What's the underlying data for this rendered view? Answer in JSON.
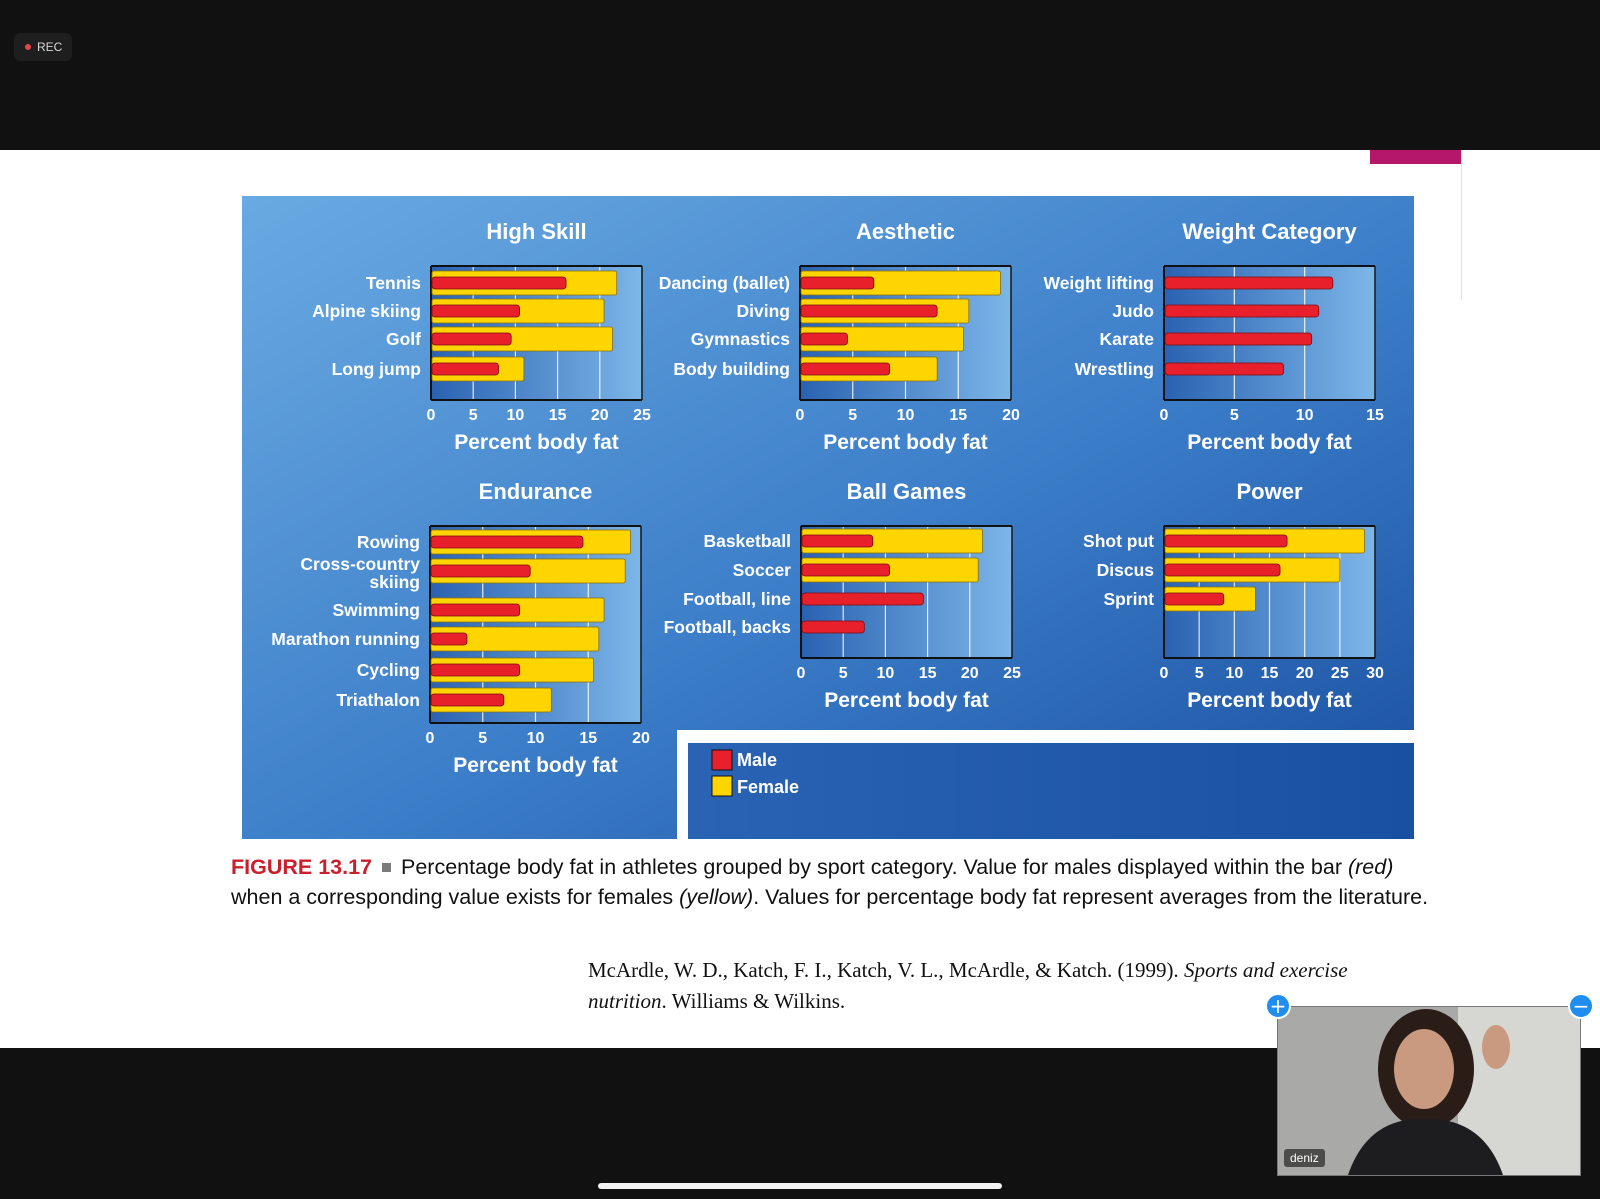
{
  "recording": {
    "label": "REC"
  },
  "figure": {
    "caption_label": "FIGURE 13.17",
    "caption_p1": "Percentage body fat in athletes grouped by sport category. Value for males displayed within the bar ",
    "caption_red": "(red)",
    "caption_p2": " when a corresponding value exists for females ",
    "caption_yellow": "(yellow)",
    "caption_p3": ". Values for percentage body fat represent averages from the literature.",
    "citation_main": "McArdle, W. D., Katch, F. I., Katch, V. L., McArdle, & Katch. (1999). ",
    "citation_title": "Sports and exercise nutrition",
    "citation_end": ". Williams & Wilkins."
  },
  "legend": {
    "male": "Male",
    "female": "Female",
    "male_color": "#e8202c",
    "female_color": "#ffd500"
  },
  "colors": {
    "panel_dark": "#1c55a6",
    "panel_light": "#6aa8e0",
    "grid": "#ffffff",
    "axis": "#111111"
  },
  "video": {
    "name": "deniz"
  },
  "controls": {
    "zoom_in": "+",
    "zoom_out": "−"
  },
  "chart_data": [
    {
      "type": "bar",
      "title": "High Skill",
      "xlabel": "Percent body fat",
      "xlim": [
        0,
        25
      ],
      "ticks": [
        0,
        5,
        10,
        15,
        20,
        25
      ],
      "categories": [
        "Tennis",
        "Alpine skiing",
        "Golf",
        "Long jump"
      ],
      "series": [
        {
          "name": "Male",
          "values": [
            16,
            10.5,
            9.5,
            8
          ]
        },
        {
          "name": "Female",
          "values": [
            22,
            20.5,
            21.5,
            11
          ]
        }
      ]
    },
    {
      "type": "bar",
      "title": "Aesthetic",
      "xlabel": "Percent body fat",
      "xlim": [
        0,
        20
      ],
      "ticks": [
        0,
        5,
        10,
        15,
        20
      ],
      "categories": [
        "Dancing (ballet)",
        "Diving",
        "Gymnastics",
        "Body building"
      ],
      "series": [
        {
          "name": "Male",
          "values": [
            7,
            13,
            4.5,
            8.5
          ]
        },
        {
          "name": "Female",
          "values": [
            19,
            16,
            15.5,
            13
          ]
        }
      ]
    },
    {
      "type": "bar",
      "title": "Weight Category",
      "xlabel": "Percent body fat",
      "xlim": [
        0,
        15
      ],
      "ticks": [
        0,
        5,
        10,
        15
      ],
      "categories": [
        "Weight lifting",
        "Judo",
        "Karate",
        "Wrestling"
      ],
      "series": [
        {
          "name": "Male",
          "values": [
            12,
            11,
            10.5,
            8.5
          ]
        }
      ]
    },
    {
      "type": "bar",
      "title": "Endurance",
      "xlabel": "Percent body fat",
      "xlim": [
        0,
        20
      ],
      "ticks": [
        0,
        5,
        10,
        15,
        20
      ],
      "categories": [
        "Rowing",
        "Cross-country skiing",
        "Swimming",
        "Marathon running",
        "Cycling",
        "Triathalon"
      ],
      "series": [
        {
          "name": "Male",
          "values": [
            14.5,
            9.5,
            8.5,
            3.5,
            8.5,
            7
          ]
        },
        {
          "name": "Female",
          "values": [
            19,
            18.5,
            16.5,
            16,
            15.5,
            11.5
          ]
        }
      ]
    },
    {
      "type": "bar",
      "title": "Ball Games",
      "xlabel": "Percent body fat",
      "xlim": [
        0,
        25
      ],
      "ticks": [
        0,
        5,
        10,
        15,
        20,
        25
      ],
      "categories": [
        "Basketball",
        "Soccer",
        "Football, line",
        "Football, backs"
      ],
      "series": [
        {
          "name": "Male",
          "values": [
            8.5,
            10.5,
            14.5,
            7.5
          ]
        },
        {
          "name": "Female",
          "values": [
            21.5,
            21,
            null,
            null
          ]
        }
      ]
    },
    {
      "type": "bar",
      "title": "Power",
      "xlabel": "Percent body fat",
      "xlim": [
        0,
        30
      ],
      "ticks": [
        0,
        5,
        10,
        15,
        20,
        25,
        30
      ],
      "categories": [
        "Shot put",
        "Discus",
        "Sprint"
      ],
      "series": [
        {
          "name": "Male",
          "values": [
            17.5,
            16.5,
            8.5
          ]
        },
        {
          "name": "Female",
          "values": [
            28.5,
            25,
            13
          ]
        }
      ]
    }
  ]
}
